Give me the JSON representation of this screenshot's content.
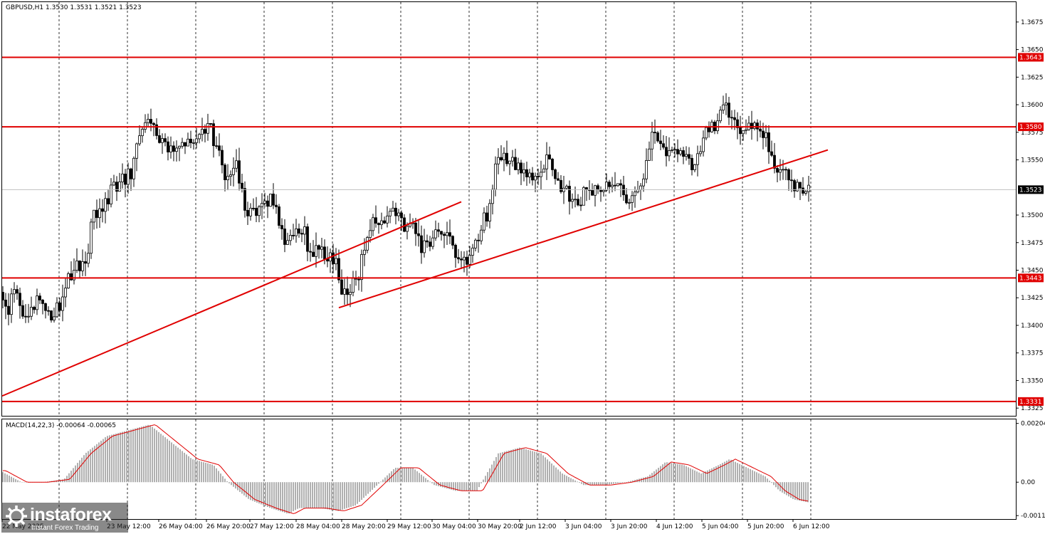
{
  "chart_data": [
    {
      "type": "candlestick",
      "title": "GBPUSD,H1  1.3530 1.3531 1.3521 1.3523",
      "ylim": [
        1.3318,
        1.3693
      ],
      "y_ticks": [
        {
          "v": 1.3675,
          "t": "1.3675"
        },
        {
          "v": 1.365,
          "t": "1.3650"
        },
        {
          "v": 1.3625,
          "t": "1.3625"
        },
        {
          "v": 1.36,
          "t": "1.3600"
        },
        {
          "v": 1.3575,
          "t": "1.3575"
        },
        {
          "v": 1.355,
          "t": "1.3550"
        },
        {
          "v": 1.35,
          "t": "1.3500"
        },
        {
          "v": 1.3475,
          "t": "1.3475"
        },
        {
          "v": 1.345,
          "t": "1.3450"
        },
        {
          "v": 1.3425,
          "t": "1.3425"
        },
        {
          "v": 1.34,
          "t": "1.3400"
        },
        {
          "v": 1.3375,
          "t": "1.3375"
        },
        {
          "v": 1.335,
          "t": "1.3350"
        },
        {
          "v": 1.3325,
          "t": "1.3325"
        }
      ],
      "levels": [
        {
          "value": 1.3643,
          "label": "1.3643",
          "color": "#e00000"
        },
        {
          "value": 1.358,
          "label": "1.3580",
          "color": "#e00000"
        },
        {
          "value": 1.3443,
          "label": "1.3443",
          "color": "#e00000"
        },
        {
          "value": 1.3331,
          "label": "1.3331",
          "color": "#e00000"
        }
      ],
      "current_price": {
        "value": 1.3523,
        "label": "1.3523"
      },
      "close_series": [
        [
          0,
          1.343
        ],
        [
          12,
          1.3415
        ],
        [
          24,
          1.3435
        ],
        [
          36,
          1.34
        ],
        [
          48,
          1.342
        ],
        [
          60,
          1.3425
        ],
        [
          72,
          1.341
        ],
        [
          84,
          1.342
        ],
        [
          96,
          1.344
        ],
        [
          108,
          1.3455
        ],
        [
          120,
          1.346
        ],
        [
          132,
          1.35
        ],
        [
          144,
          1.351
        ],
        [
          156,
          1.352
        ],
        [
          168,
          1.353
        ],
        [
          182,
          1.3535
        ],
        [
          196,
          1.3575
        ],
        [
          210,
          1.358
        ],
        [
          225,
          1.3565
        ],
        [
          240,
          1.356
        ],
        [
          258,
          1.356
        ],
        [
          272,
          1.3565
        ],
        [
          284,
          1.358
        ],
        [
          296,
          1.3575
        ],
        [
          308,
          1.3555
        ],
        [
          320,
          1.353
        ],
        [
          332,
          1.3545
        ],
        [
          344,
          1.3505
        ],
        [
          356,
          1.35
        ],
        [
          370,
          1.3505
        ],
        [
          384,
          1.3515
        ],
        [
          398,
          1.348
        ],
        [
          410,
          1.3475
        ],
        [
          424,
          1.349
        ],
        [
          436,
          1.3465
        ],
        [
          448,
          1.347
        ],
        [
          462,
          1.346
        ],
        [
          472,
          1.3455
        ],
        [
          480,
          1.3425
        ],
        [
          492,
          1.343
        ],
        [
          504,
          1.3445
        ],
        [
          516,
          1.348
        ],
        [
          528,
          1.35
        ],
        [
          540,
          1.3495
        ],
        [
          552,
          1.35
        ],
        [
          566,
          1.349
        ],
        [
          580,
          1.3495
        ],
        [
          592,
          1.347
        ],
        [
          606,
          1.3475
        ],
        [
          620,
          1.349
        ],
        [
          634,
          1.347
        ],
        [
          646,
          1.346
        ],
        [
          658,
          1.3455
        ],
        [
          670,
          1.348
        ],
        [
          684,
          1.35
        ],
        [
          698,
          1.3545
        ],
        [
          712,
          1.355
        ],
        [
          726,
          1.3545
        ],
        [
          740,
          1.353
        ],
        [
          756,
          1.354
        ],
        [
          770,
          1.3555
        ],
        [
          786,
          1.353
        ],
        [
          800,
          1.352
        ],
        [
          814,
          1.351
        ],
        [
          826,
          1.3525
        ],
        [
          838,
          1.352
        ],
        [
          852,
          1.3525
        ],
        [
          866,
          1.353
        ],
        [
          880,
          1.3515
        ],
        [
          894,
          1.3525
        ],
        [
          906,
          1.3535
        ],
        [
          918,
          1.3575
        ],
        [
          932,
          1.356
        ],
        [
          946,
          1.3555
        ],
        [
          960,
          1.355
        ],
        [
          976,
          1.3545
        ],
        [
          990,
          1.357
        ],
        [
          1004,
          1.358
        ],
        [
          1014,
          1.3605
        ],
        [
          1026,
          1.359
        ],
        [
          1040,
          1.3575
        ],
        [
          1054,
          1.358
        ],
        [
          1066,
          1.3575
        ],
        [
          1078,
          1.3565
        ],
        [
          1090,
          1.3545
        ],
        [
          1102,
          1.354
        ],
        [
          1114,
          1.352
        ],
        [
          1126,
          1.3525
        ],
        [
          1136,
          1.3523
        ]
      ],
      "trendlines": [
        {
          "from": [
            3,
            1.3336
          ],
          "to": [
            648,
            1.3512
          ],
          "color": "#e00000"
        },
        {
          "from": [
            476,
            1.3416
          ],
          "to": [
            1163,
            1.3559
          ],
          "color": "#e00000"
        }
      ],
      "x_ticks": [
        {
          "x": 3,
          "t": "22 May 2025"
        },
        {
          "x": 150,
          "t": "23 May 12:00"
        },
        {
          "x": 223,
          "t": "26 May 04:00"
        },
        {
          "x": 290,
          "t": "26 May 20:00"
        },
        {
          "x": 351,
          "t": "27 May 12:00"
        },
        {
          "x": 416,
          "t": "28 May 04:00"
        },
        {
          "x": 480,
          "t": "28 May 20:00"
        },
        {
          "x": 544,
          "t": "29 May 12:00"
        },
        {
          "x": 607,
          "t": "30 May 04:00"
        },
        {
          "x": 671,
          "t": "30 May 20:00"
        },
        {
          "x": 730,
          "t": "2 Jun 12:00"
        },
        {
          "x": 794,
          "t": "3 Jun 04:00"
        },
        {
          "x": 858,
          "t": "3 Jun 20:00"
        },
        {
          "x": 922,
          "t": "4 Jun 12:00"
        },
        {
          "x": 986,
          "t": "5 Jun 04:00"
        },
        {
          "x": 1050,
          "t": "5 Jun 20:00"
        },
        {
          "x": 1114,
          "t": "6 Jun 12:00"
        }
      ],
      "grid": "vertical dashed",
      "colors": {
        "level": "#e00000",
        "candle": "#000000",
        "background": "#ffffff"
      }
    },
    {
      "type": "histogram",
      "title": "MACD(14,22,3) -0.00064 -0.00065",
      "ylim": [
        -0.00128,
        0.00218
      ],
      "y_ticks": [
        {
          "v": 0.00204,
          "t": "0.00204"
        },
        {
          "v": 0.0,
          "t": "0.00"
        },
        {
          "v": -0.00116,
          "t": "-0.00116"
        }
      ],
      "histogram_series": [
        [
          0,
          0.0004
        ],
        [
          30,
          0.0
        ],
        [
          60,
          0.0
        ],
        [
          90,
          0.0001
        ],
        [
          120,
          0.001
        ],
        [
          150,
          0.0016
        ],
        [
          180,
          0.0018
        ],
        [
          210,
          0.002
        ],
        [
          240,
          0.0014
        ],
        [
          270,
          0.0008
        ],
        [
          300,
          0.0006
        ],
        [
          320,
          0.0
        ],
        [
          350,
          -0.0006
        ],
        [
          380,
          -0.0009
        ],
        [
          405,
          -0.0011
        ],
        [
          420,
          -0.0009
        ],
        [
          450,
          -0.0009
        ],
        [
          475,
          -0.001
        ],
        [
          500,
          -0.0008
        ],
        [
          530,
          -0.0001
        ],
        [
          555,
          0.0005
        ],
        [
          580,
          0.0005
        ],
        [
          610,
          -0.0001
        ],
        [
          640,
          -0.0003
        ],
        [
          670,
          -0.0003
        ],
        [
          700,
          0.001
        ],
        [
          730,
          0.0012
        ],
        [
          760,
          0.001
        ],
        [
          790,
          0.0003
        ],
        [
          820,
          -0.0001
        ],
        [
          850,
          -0.0001
        ],
        [
          880,
          0.0
        ],
        [
          910,
          0.0002
        ],
        [
          935,
          0.0007
        ],
        [
          960,
          0.0006
        ],
        [
          985,
          0.0003
        ],
        [
          1010,
          0.0006
        ],
        [
          1025,
          0.0008
        ],
        [
          1050,
          0.0005
        ],
        [
          1075,
          0.0002
        ],
        [
          1095,
          -0.0003
        ],
        [
          1115,
          -0.0006
        ],
        [
          1136,
          -0.0007
        ]
      ],
      "signal_color": "#e00000",
      "histogram_color": "#b0b0b0"
    }
  ],
  "branding": {
    "name": "instaforex",
    "tagline": "Instant Forex Trading"
  }
}
